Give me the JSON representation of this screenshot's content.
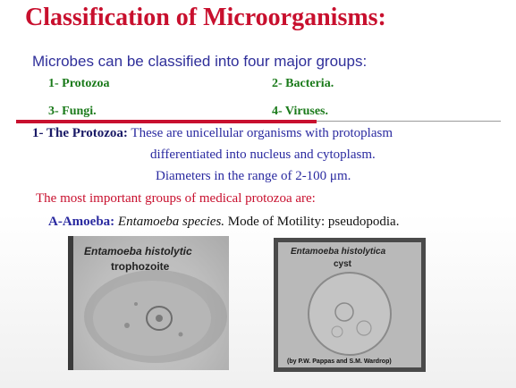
{
  "slide": {
    "title": "Classification of Microorganisms:",
    "subtitle": "Microbes can be classified into four major groups:",
    "groups": [
      "1- Protozoa",
      "2- Bacteria.",
      "3- Fungi.",
      "4- Viruses."
    ],
    "protozoa_label": "1- The Protozoa:",
    "protozoa_line1": " These are unicellular organisms with protoplasm",
    "protozoa_line2": "differentiated into nucleus and cytoplasm.",
    "protozoa_line3": "Diameters in the range of 2-100 μm.",
    "important_groups": "The most important groups of medical protozoa are:",
    "amoeba_label": "A-Amoeba:",
    "amoeba_species": " Entamoeba species.",
    "amoeba_motility": " Mode of Motility: pseudopodia."
  },
  "images": {
    "left": {
      "caption_species": "Entamoeba histolytic",
      "caption_stage": "trophozoite"
    },
    "right": {
      "caption_species": "Entamoeba histolytica",
      "caption_stage": "cyst",
      "credit": "(by P.W. Pappas and S.M. Wardrop)"
    }
  }
}
